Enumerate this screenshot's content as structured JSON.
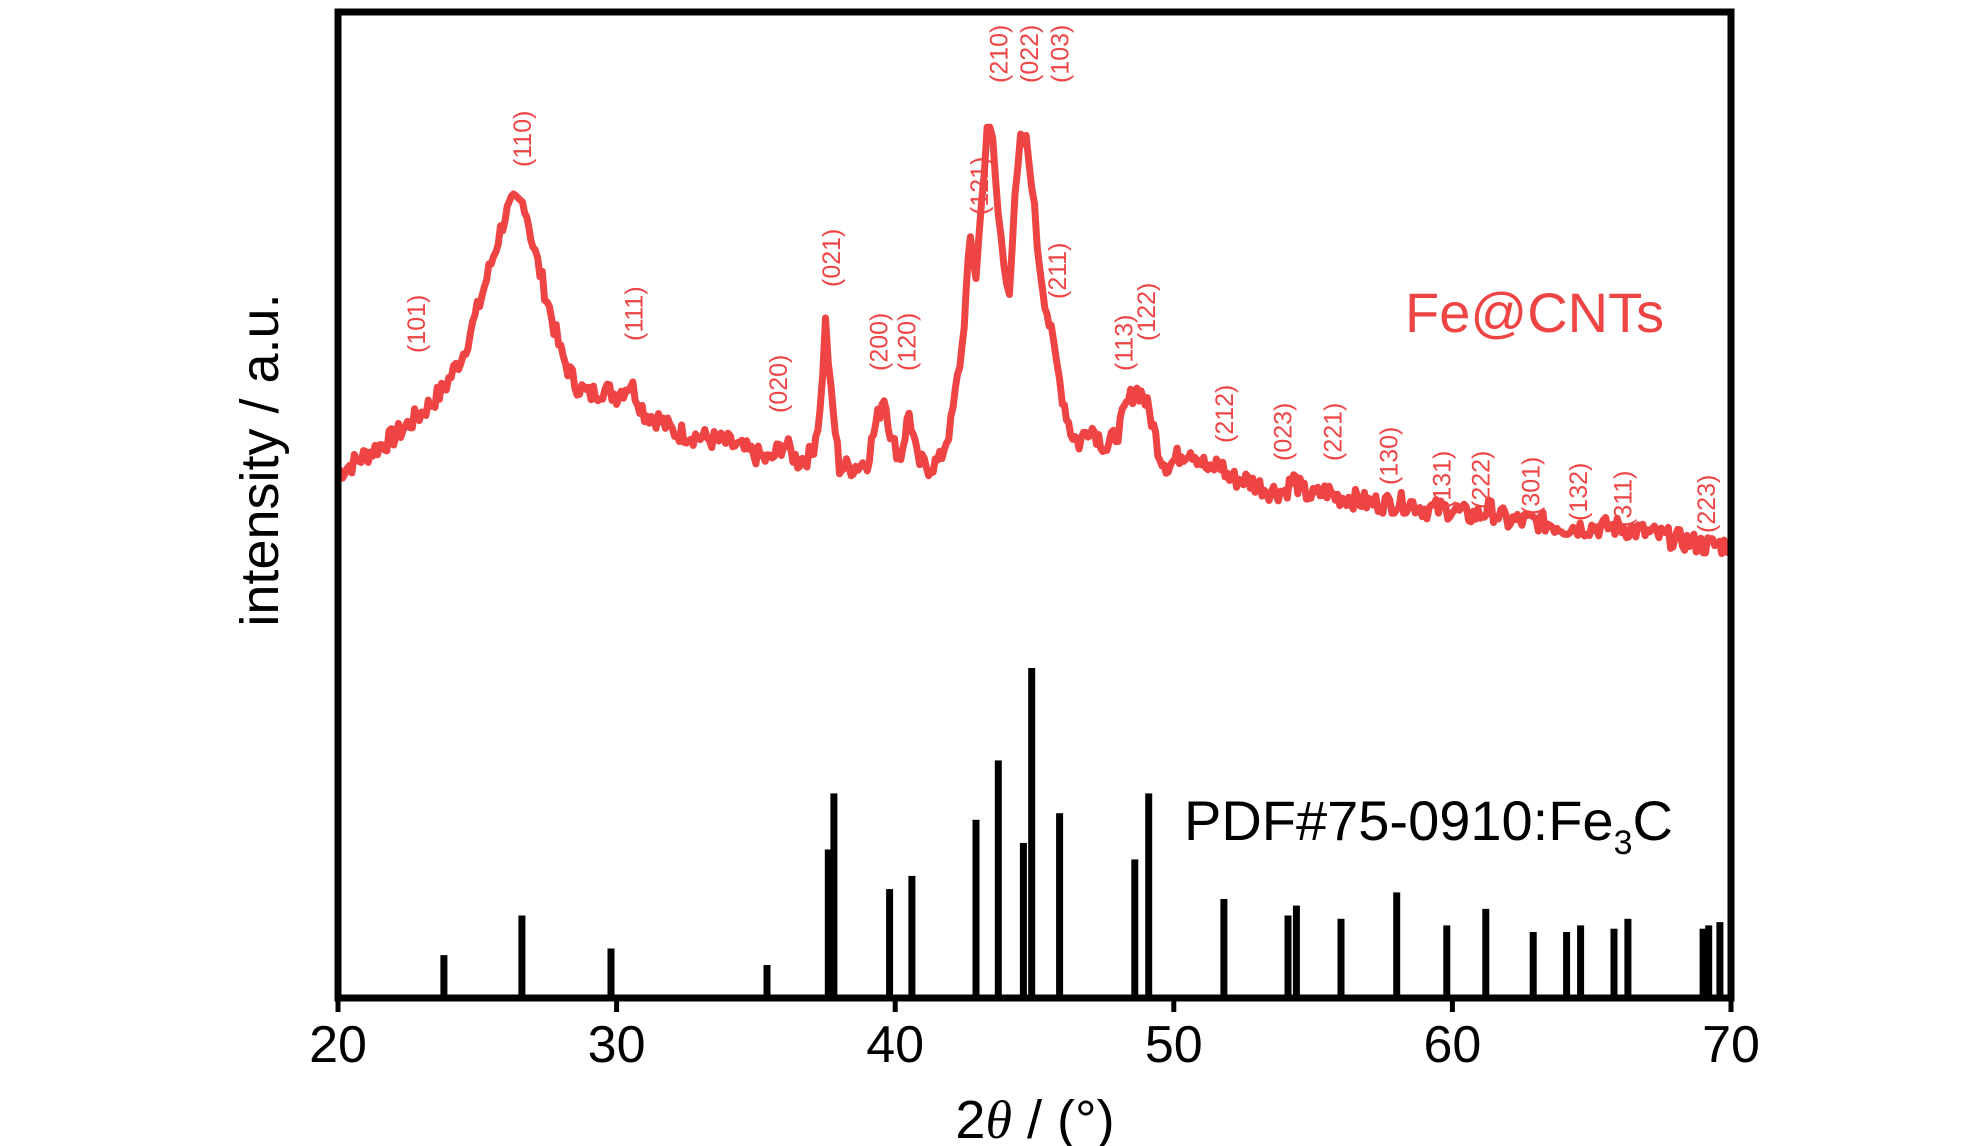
{
  "chart_data": {
    "type": "line",
    "xlabel_prefix": "2",
    "xlabel_theta": "θ",
    "xlabel_suffix": " / (°)",
    "ylabel": "intensity / a.u.",
    "xlim": [
      20,
      70
    ],
    "xticks": [
      "20",
      "30",
      "40",
      "50",
      "60",
      "70"
    ],
    "grid": false,
    "colors": {
      "series": "#ee4444",
      "reference": "#000000",
      "frame": "#000000"
    },
    "series": [
      {
        "name": "Fe@CNTs",
        "x": [
          20,
          21,
          22,
          23,
          23.8,
          24.5,
          25,
          25.5,
          26,
          26.3,
          26.7,
          27,
          27.5,
          28,
          28.5,
          29,
          29.5,
          30,
          30.5,
          31,
          31.5,
          32,
          33,
          34,
          35,
          35.5,
          36,
          36.5,
          37,
          37.3,
          37.5,
          37.7,
          38,
          38.5,
          39,
          39.3,
          39.6,
          39.9,
          40.2,
          40.5,
          40.8,
          41.2,
          41.6,
          42,
          42.4,
          42.7,
          42.9,
          43.1,
          43.3,
          43.5,
          43.7,
          43.9,
          44.1,
          44.3,
          44.5,
          44.7,
          44.9,
          45.1,
          45.3,
          45.6,
          45.8,
          46,
          46.3,
          46.6,
          47,
          47.3,
          47.6,
          48,
          48.3,
          48.6,
          48.9,
          49.2,
          49.5,
          49.8,
          50.2,
          50.6,
          51,
          51.3,
          51.6,
          52,
          52.5,
          53,
          53.5,
          54,
          54.3,
          54.6,
          55,
          55.5,
          55.8,
          56.2,
          57,
          57.5,
          58,
          58.5,
          59,
          59.5,
          60,
          60.5,
          61,
          61.3,
          62,
          62.5,
          63,
          64,
          64.5,
          65,
          65.5,
          66,
          67,
          68,
          69,
          69.5,
          70
        ],
        "values": [
          0.07,
          0.1,
          0.13,
          0.17,
          0.21,
          0.27,
          0.34,
          0.42,
          0.5,
          0.52,
          0.52,
          0.45,
          0.36,
          0.27,
          0.22,
          0.2,
          0.21,
          0.2,
          0.22,
          0.17,
          0.16,
          0.14,
          0.13,
          0.12,
          0.1,
          0.09,
          0.12,
          0.09,
          0.1,
          0.17,
          0.32,
          0.2,
          0.08,
          0.08,
          0.09,
          0.15,
          0.2,
          0.12,
          0.1,
          0.17,
          0.09,
          0.08,
          0.09,
          0.15,
          0.28,
          0.46,
          0.4,
          0.52,
          0.65,
          0.62,
          0.5,
          0.42,
          0.38,
          0.52,
          0.62,
          0.62,
          0.56,
          0.45,
          0.38,
          0.3,
          0.25,
          0.2,
          0.14,
          0.12,
          0.15,
          0.13,
          0.11,
          0.14,
          0.18,
          0.21,
          0.2,
          0.16,
          0.1,
          0.08,
          0.1,
          0.11,
          0.09,
          0.07,
          0.09,
          0.06,
          0.06,
          0.05,
          0.04,
          0.04,
          0.06,
          0.04,
          0.03,
          0.04,
          0.03,
          0.03,
          0.02,
          0.02,
          0.02,
          0.02,
          0.01,
          0.01,
          0.01,
          0.0,
          0.0,
          0.01,
          -0.01,
          -0.01,
          -0.01,
          -0.02,
          -0.02,
          -0.02,
          -0.02,
          -0.02,
          -0.03,
          -0.04,
          -0.05,
          -0.05,
          -0.05
        ],
        "peak_labels": [
          {
            "x": 22.8,
            "label": "(101)",
            "y": 0.27
          },
          {
            "x": 26.6,
            "label": "(110)",
            "y": 0.58
          },
          {
            "x": 30.6,
            "label": "(111)",
            "y": 0.29
          },
          {
            "x": 35.8,
            "label": "(020)",
            "y": 0.17
          },
          {
            "x": 37.7,
            "label": "(021)",
            "y": 0.38
          },
          {
            "x": 39.4,
            "label": "(200)",
            "y": 0.24
          },
          {
            "x": 40.4,
            "label": "(120)",
            "y": 0.24
          },
          {
            "x": 43.0,
            "label": "(121)",
            "y": 0.5
          },
          {
            "x": 43.7,
            "label": "(210)",
            "y": 0.72
          },
          {
            "x": 44.8,
            "label": "(022)",
            "y": 0.72
          },
          {
            "x": 45.9,
            "label": "(103)",
            "y": 0.72
          },
          {
            "x": 45.8,
            "label": "(211)",
            "y": 0.36
          },
          {
            "x": 48.2,
            "label": "(113)",
            "y": 0.24
          },
          {
            "x": 49.0,
            "label": "(122)",
            "y": 0.29
          },
          {
            "x": 51.8,
            "label": "(212)",
            "y": 0.12
          },
          {
            "x": 53.9,
            "label": "(023)",
            "y": 0.09
          },
          {
            "x": 55.7,
            "label": "(221)",
            "y": 0.09
          },
          {
            "x": 57.7,
            "label": "(130)",
            "y": 0.05
          },
          {
            "x": 59.6,
            "label": "(131)",
            "y": 0.01
          },
          {
            "x": 61.0,
            "label": "(222)",
            "y": 0.01
          },
          {
            "x": 62.8,
            "label": "(301)",
            "y": 0.0
          },
          {
            "x": 64.5,
            "label": "(132)",
            "y": -0.01
          },
          {
            "x": 66.1,
            "label": "(311)",
            "y": -0.02
          },
          {
            "x": 69.1,
            "label": "(223)",
            "y": -0.03
          }
        ]
      },
      {
        "name": "PDF#75-0910:Fe",
        "name_subscript": "3",
        "name_tail": "C",
        "type": "stick",
        "x": [
          23.8,
          26.6,
          29.8,
          35.4,
          37.6,
          37.8,
          39.8,
          40.6,
          42.9,
          43.7,
          44.6,
          44.9,
          45.9,
          48.6,
          49.1,
          51.8,
          54.1,
          54.4,
          56.0,
          58.0,
          59.8,
          61.2,
          62.9,
          64.1,
          64.6,
          65.8,
          66.3,
          69.0,
          69.2,
          69.6
        ],
        "values": [
          0.13,
          0.25,
          0.15,
          0.1,
          0.45,
          0.62,
          0.33,
          0.37,
          0.54,
          0.72,
          0.47,
          1.0,
          0.56,
          0.42,
          0.62,
          0.3,
          0.25,
          0.28,
          0.24,
          0.32,
          0.22,
          0.27,
          0.2,
          0.2,
          0.22,
          0.21,
          0.24,
          0.21,
          0.22,
          0.23
        ]
      }
    ]
  }
}
